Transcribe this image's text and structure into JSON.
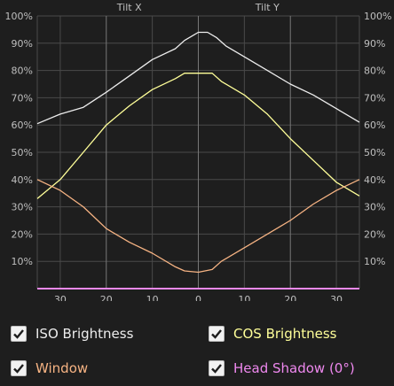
{
  "chart_data": {
    "type": "line",
    "x_top_labels": [
      "Tilt X",
      "Tilt Y"
    ],
    "x_ticks": [
      "30",
      "20",
      "10",
      "0",
      "10",
      "20",
      "30"
    ],
    "y_ticks": [
      "10%",
      "20%",
      "30%",
      "40%",
      "50%",
      "60%",
      "70%",
      "80%",
      "90%",
      "100%"
    ],
    "ylim": [
      0,
      100
    ],
    "series": [
      {
        "name": "ISO Brightness",
        "color": "#ededed",
        "points": [
          [
            -35,
            60.5
          ],
          [
            -30,
            64
          ],
          [
            -25,
            66.5
          ],
          [
            -20,
            72
          ],
          [
            -15,
            78
          ],
          [
            -10,
            84
          ],
          [
            -5,
            88
          ],
          [
            -3,
            91
          ],
          [
            -1,
            93
          ],
          [
            0,
            94
          ],
          [
            2,
            94
          ],
          [
            4,
            92
          ],
          [
            6,
            89
          ],
          [
            10,
            85
          ],
          [
            15,
            80
          ],
          [
            20,
            75
          ],
          [
            25,
            71
          ],
          [
            30,
            66
          ],
          [
            35,
            61
          ]
        ]
      },
      {
        "name": "COS Brightness",
        "color": "#ffff99",
        "points": [
          [
            -35,
            33
          ],
          [
            -30,
            40
          ],
          [
            -25,
            50
          ],
          [
            -20,
            60
          ],
          [
            -15,
            67
          ],
          [
            -10,
            73
          ],
          [
            -5,
            77
          ],
          [
            -3,
            79
          ],
          [
            0,
            79
          ],
          [
            3,
            79
          ],
          [
            5,
            76
          ],
          [
            10,
            71
          ],
          [
            15,
            64
          ],
          [
            20,
            55
          ],
          [
            25,
            47
          ],
          [
            30,
            39
          ],
          [
            35,
            34
          ]
        ]
      },
      {
        "name": "Window",
        "color": "#f6b383",
        "points": [
          [
            -35,
            40
          ],
          [
            -30,
            36
          ],
          [
            -25,
            30
          ],
          [
            -20,
            22
          ],
          [
            -15,
            17
          ],
          [
            -10,
            13
          ],
          [
            -5,
            8
          ],
          [
            -3,
            6.5
          ],
          [
            0,
            6
          ],
          [
            3,
            7
          ],
          [
            5,
            10
          ],
          [
            10,
            15
          ],
          [
            15,
            20
          ],
          [
            20,
            25
          ],
          [
            25,
            31
          ],
          [
            30,
            36
          ],
          [
            35,
            40
          ]
        ]
      },
      {
        "name": "Head Shadow (0°)",
        "color": "#ee88ee",
        "points": [
          [
            -35,
            0
          ],
          [
            35,
            0
          ]
        ]
      }
    ]
  },
  "legend": {
    "iso": "ISO Brightness",
    "cos": "COS Brightness",
    "window": "Window",
    "head": "Head Shadow (0°)"
  },
  "colors": {
    "background": "#1e1e1e",
    "grid": "#4a4a4a",
    "axis_text": "#bfbfbf",
    "iso": "#ededed",
    "cos": "#ffff99",
    "window": "#f6b383",
    "head": "#ee88ee"
  }
}
